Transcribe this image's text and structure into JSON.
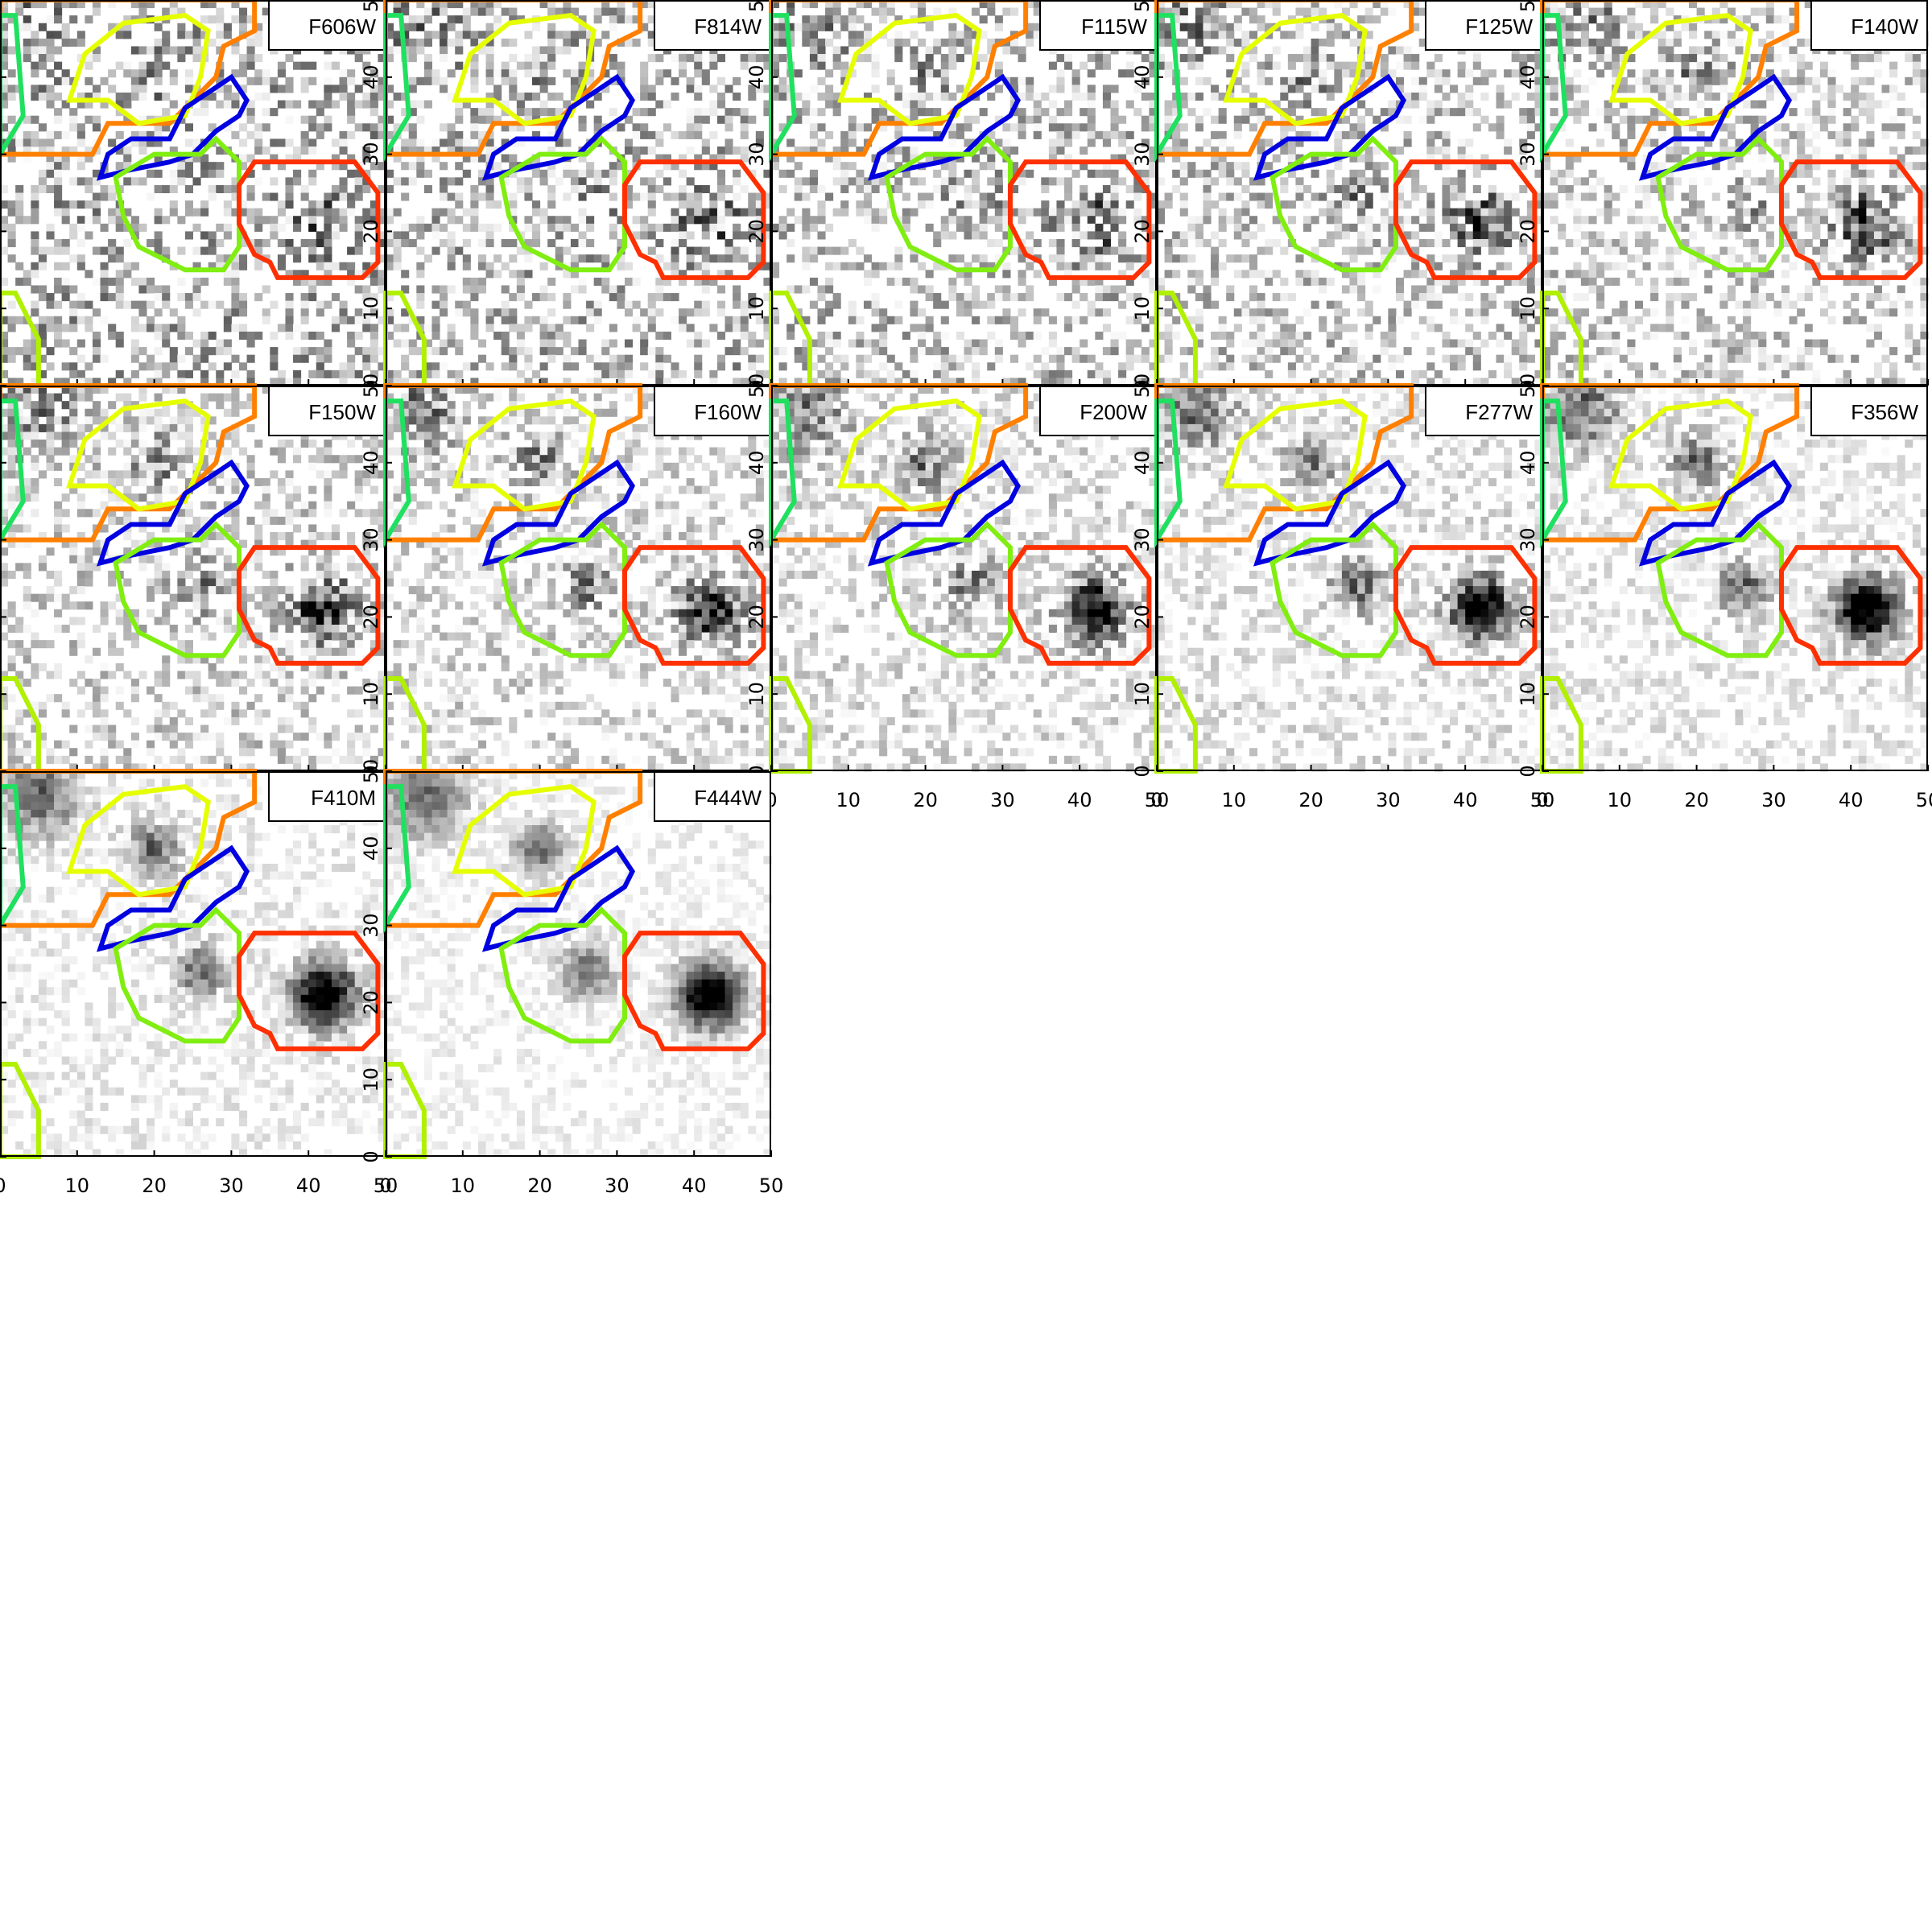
{
  "filters": [
    "F606W",
    "F814W",
    "F115W",
    "F125W",
    "F140W",
    "F150W",
    "F160W",
    "F200W",
    "F277W",
    "F356W",
    "F410M",
    "F444W"
  ],
  "xticks": [
    0,
    10,
    20,
    30,
    40,
    50
  ],
  "yticks": [
    0,
    10,
    20,
    30,
    40,
    50
  ]
}
